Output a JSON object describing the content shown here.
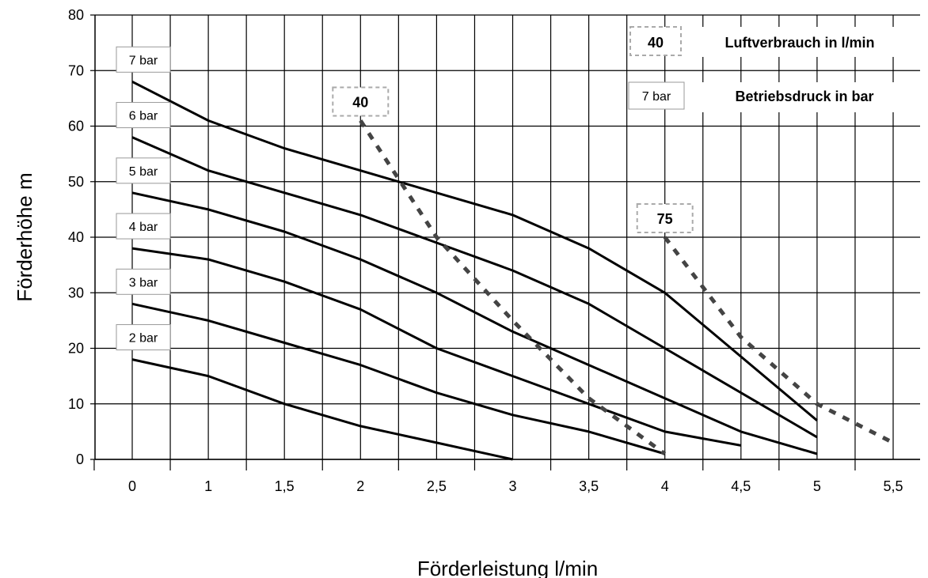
{
  "chart_data": {
    "type": "line",
    "title": "",
    "xlabel": "Förderleistung l/min",
    "ylabel": "Förderhöhe m",
    "categories": [
      "0",
      "1",
      "1,5",
      "2",
      "2,5",
      "3",
      "3,5",
      "4",
      "4,5",
      "5",
      "5,5"
    ],
    "ylim": [
      0,
      80
    ],
    "yticks": [
      0,
      10,
      20,
      30,
      40,
      50,
      60,
      70,
      80
    ],
    "grid": true,
    "series": [
      {
        "name": "7 bar",
        "x": [
          0,
          1,
          1.5,
          2,
          2.5,
          3,
          3.5,
          4,
          5
        ],
        "y": [
          68,
          61,
          56,
          52,
          48,
          44,
          38,
          30,
          7
        ]
      },
      {
        "name": "6 bar",
        "x": [
          0,
          1,
          1.5,
          2,
          2.5,
          3,
          3.5,
          4,
          5
        ],
        "y": [
          58,
          52,
          48,
          44,
          39,
          34,
          28,
          20,
          4
        ]
      },
      {
        "name": "5 bar",
        "x": [
          0,
          1,
          1.5,
          2,
          2.5,
          3,
          3.5,
          4,
          4.5,
          5
        ],
        "y": [
          48,
          45,
          41,
          36,
          30,
          23,
          17,
          11,
          5,
          1
        ]
      },
      {
        "name": "4 bar",
        "x": [
          0,
          1,
          1.5,
          2,
          2.5,
          3,
          3.5,
          4,
          4.5
        ],
        "y": [
          38,
          36,
          32,
          27,
          20,
          15,
          10,
          5,
          2.5
        ]
      },
      {
        "name": "3 bar",
        "x": [
          0,
          1,
          1.5,
          2,
          2.5,
          3,
          3.5,
          4
        ],
        "y": [
          28,
          25,
          21,
          17,
          12,
          8,
          5,
          1
        ]
      },
      {
        "name": "2 bar",
        "x": [
          0,
          1,
          1.5,
          2,
          2.5,
          3
        ],
        "y": [
          18,
          15,
          10,
          6,
          3,
          0
        ]
      }
    ],
    "air_consumption_lines": [
      {
        "label": "40",
        "x": [
          2,
          2.5,
          3,
          3.5,
          4
        ],
        "y": [
          61,
          40,
          25,
          11,
          1
        ]
      },
      {
        "label": "75",
        "x": [
          4,
          4.5,
          5,
          5.5
        ],
        "y": [
          40,
          22,
          10,
          3
        ]
      }
    ],
    "legend": {
      "position": "top-right",
      "entries": [
        {
          "key": "40",
          "text": "Luftverbrauch in l/min"
        },
        {
          "key": "7 bar",
          "text": "Betriebsdruck in bar"
        }
      ]
    }
  }
}
